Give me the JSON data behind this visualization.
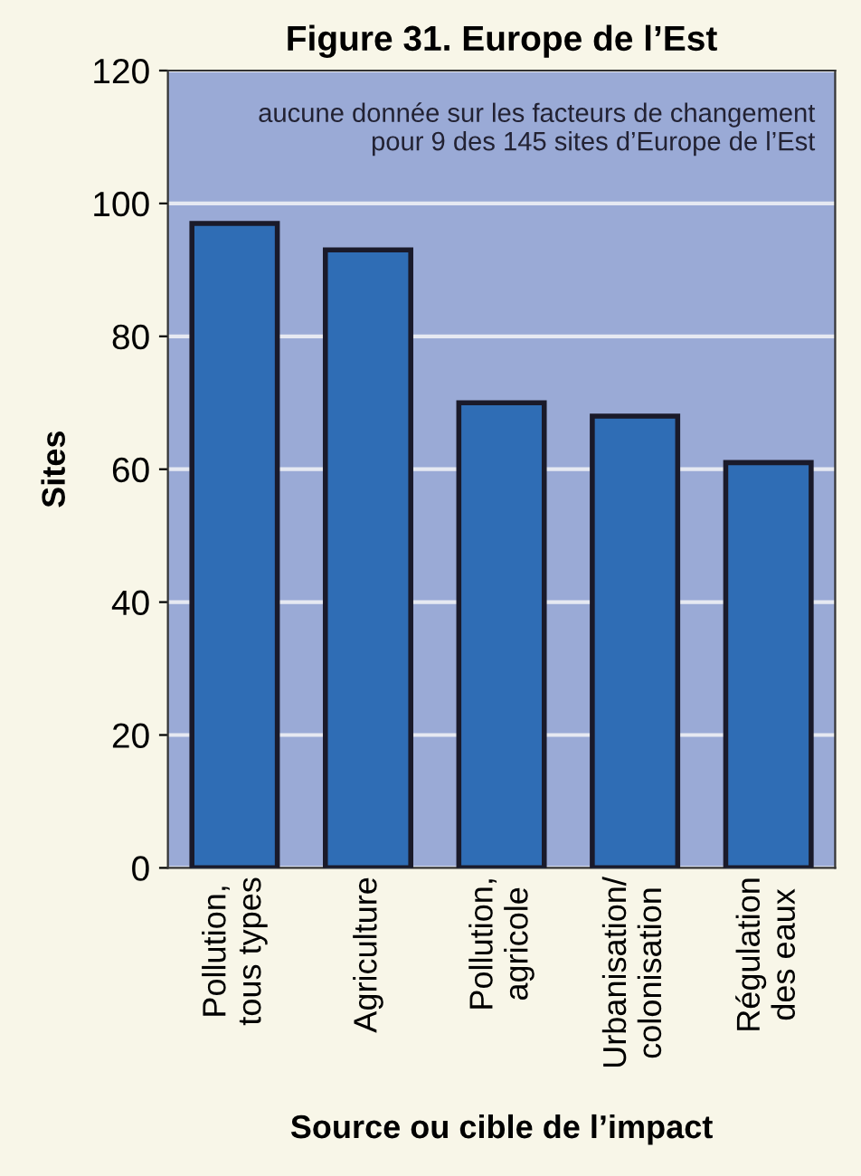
{
  "chart_data": {
    "type": "bar",
    "title": "Figure 31. Europe de l’Est",
    "xlabel": "Source ou cible de l’impact",
    "ylabel": "Sites",
    "categories": [
      "Pollution,\ntous types",
      "Agriculture",
      "Pollution,\nagricole",
      "Urbanisation/\ncolonisation",
      "Régulation\ndes eaux"
    ],
    "values": [
      97,
      93,
      70,
      68,
      61
    ],
    "color": "#2f6db5",
    "ylim": [
      0,
      120
    ],
    "yticks": [
      0,
      20,
      40,
      60,
      80,
      100,
      120
    ],
    "grid": "y",
    "annotations": [
      "aucune donnée sur les facteurs de changement\npour 9 des 145 sites d’Europe de l’Est"
    ]
  }
}
